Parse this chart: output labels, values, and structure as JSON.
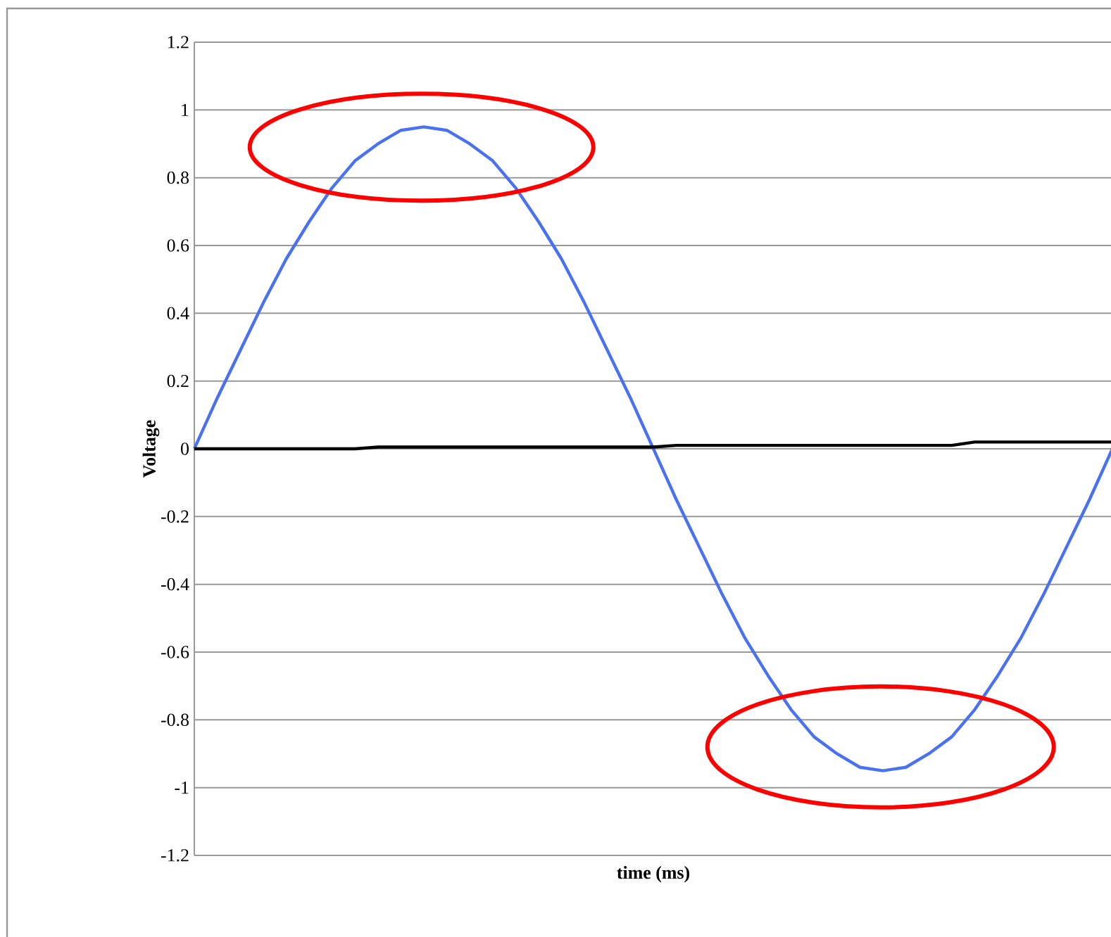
{
  "chart_data": {
    "type": "line",
    "xlabel": "time (ms)",
    "ylabel": "Voltage",
    "categories": [
      null,
      null,
      null,
      null,
      null,
      null,
      null,
      null,
      null,
      null,
      null,
      null,
      null,
      null,
      null,
      null,
      null,
      null,
      null,
      null,
      null,
      null,
      null,
      null,
      null,
      null,
      null,
      null,
      null,
      null,
      null,
      null,
      null,
      null,
      null,
      null,
      null,
      null,
      null,
      null,
      null
    ],
    "series": [
      {
        "color": "#4a72f0",
        "values": [
          0,
          0.15,
          0.29,
          0.43,
          0.56,
          0.67,
          0.77,
          0.85,
          0.9,
          0.94,
          0.95,
          0.94,
          0.9,
          0.85,
          0.77,
          0.67,
          0.56,
          0.43,
          0.29,
          0.15,
          0,
          -0.15,
          -0.29,
          -0.43,
          -0.56,
          -0.67,
          -0.77,
          -0.85,
          -0.9,
          -0.94,
          -0.95,
          -0.94,
          -0.9,
          -0.85,
          -0.77,
          -0.67,
          -0.56,
          -0.43,
          -0.29,
          -0.15,
          0
        ]
      },
      {
        "color": "#000000",
        "values": [
          0,
          0,
          0,
          0,
          0,
          0,
          0,
          0,
          0.005,
          0.005,
          0.005,
          0.005,
          0.005,
          0.005,
          0.005,
          0.005,
          0.005,
          0.005,
          0.005,
          0.005,
          0.005,
          0.01,
          0.01,
          0.01,
          0.01,
          0.01,
          0.01,
          0.01,
          0.01,
          0.01,
          0.01,
          0.01,
          0.01,
          0.01,
          0.02,
          0.02,
          0.02,
          0.02,
          0.02,
          0.02,
          0.02
        ]
      }
    ],
    "ylim": [
      -1.2,
      1.2
    ],
    "yticks": [
      -1.2,
      -1,
      -0.8,
      -0.6,
      -0.4,
      -0.2,
      0,
      0.2,
      0.4,
      0.6,
      0.8,
      1,
      1.2
    ],
    "grid": "y",
    "tick_labels": "y"
  }
}
